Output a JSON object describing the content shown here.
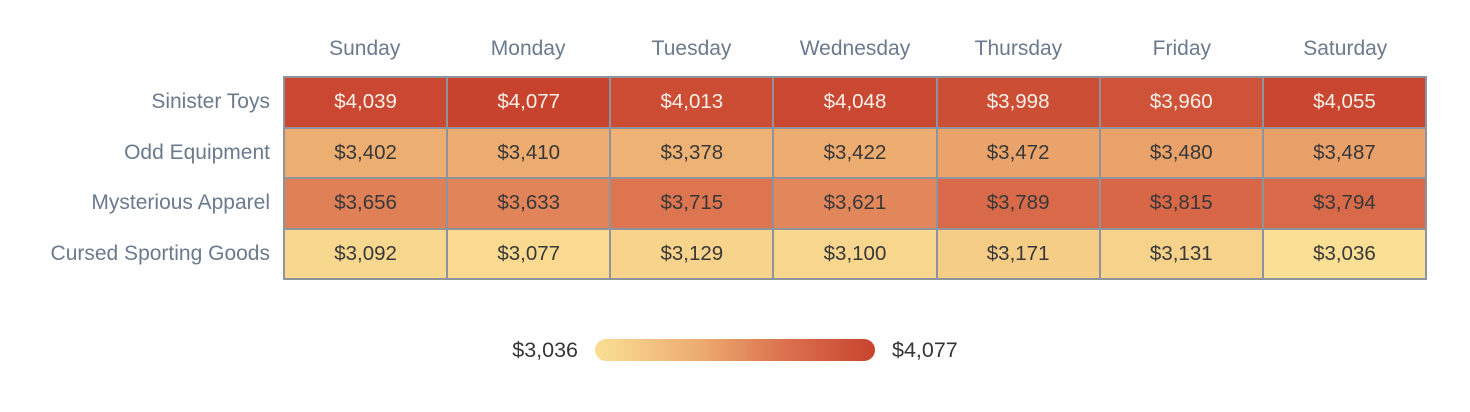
{
  "chart_data": {
    "type": "heatmap",
    "columns": [
      "Sunday",
      "Monday",
      "Tuesday",
      "Wednesday",
      "Thursday",
      "Friday",
      "Saturday"
    ],
    "rows": [
      {
        "label": "Sinister Toys",
        "values": [
          4039,
          4077,
          4013,
          4048,
          3998,
          3960,
          4055
        ]
      },
      {
        "label": "Odd Equipment",
        "values": [
          3402,
          3410,
          3378,
          3422,
          3472,
          3480,
          3487
        ]
      },
      {
        "label": "Mysterious Apparel",
        "values": [
          3656,
          3633,
          3715,
          3621,
          3789,
          3815,
          3794
        ]
      },
      {
        "label": "Cursed Sporting Goods",
        "values": [
          3092,
          3077,
          3129,
          3100,
          3171,
          3131,
          3036
        ]
      }
    ],
    "value_prefix": "$",
    "min": 3036,
    "max": 4077,
    "legend": {
      "min_label": "$3,036",
      "max_label": "$4,077",
      "position": "bottom-center"
    },
    "colors": {
      "scale_stops": [
        {
          "t": 0,
          "color": "#fadf94"
        },
        {
          "t": 0.39,
          "color": "#eca96e"
        },
        {
          "t": 0.655,
          "color": "#dc7450"
        },
        {
          "t": 1,
          "color": "#c8432e"
        }
      ],
      "light_text_threshold": 0.8,
      "header_text": "#6b7a8c",
      "row_label_text": "#6b7a8c",
      "cell_text_dark": "#383838",
      "cell_text_light": "#f7f1ea",
      "cell_border": "#8e939c",
      "legend_text": "#363636"
    },
    "grid": true,
    "title": "",
    "xlabel": "",
    "ylabel": ""
  }
}
